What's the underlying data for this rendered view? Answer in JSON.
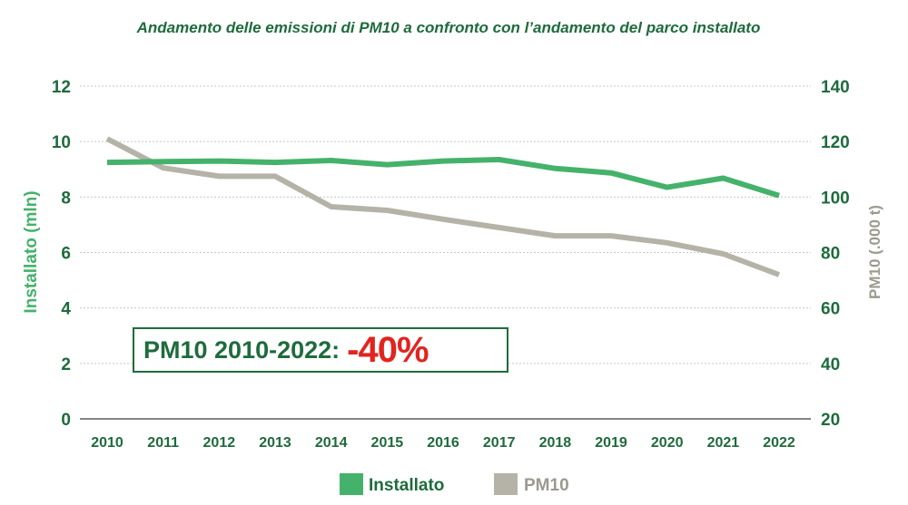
{
  "chart_data": {
    "type": "line",
    "title": "Andamento delle emissioni di PM10 a confronto con l’andamento del parco installato",
    "x": [
      "2010",
      "2011",
      "2012",
      "2013",
      "2014",
      "2015",
      "2016",
      "2017",
      "2018",
      "2019",
      "2020",
      "2021",
      "2022"
    ],
    "series": [
      {
        "name": "Installato",
        "axis": "left",
        "color": "#45b26b",
        "values": [
          9.25,
          9.28,
          9.3,
          9.25,
          9.32,
          9.17,
          9.3,
          9.35,
          9.03,
          8.87,
          8.35,
          8.68,
          8.05
        ]
      },
      {
        "name": "PM10",
        "axis": "right",
        "color": "#b5b3a7",
        "values": [
          121,
          110.5,
          107.5,
          107.5,
          96.5,
          95.2,
          92,
          89,
          86,
          86,
          83.5,
          79.5,
          72
        ]
      }
    ],
    "ylabel_left": "Installato (mln)",
    "ylabel_right": "PM10 (.000 t)",
    "ylim_left": [
      0,
      12
    ],
    "ylim_right": [
      20,
      140
    ],
    "yticks_left": [
      "0",
      "2",
      "4",
      "6",
      "8",
      "10",
      "12"
    ],
    "yticks_right": [
      "20",
      "40",
      "60",
      "80",
      "100",
      "120",
      "140"
    ],
    "grid": true,
    "legend_position": "bottom-center",
    "annotation": {
      "label": "PM10 2010-2022:",
      "value": "-40%",
      "value_color": "#e2241f"
    }
  }
}
